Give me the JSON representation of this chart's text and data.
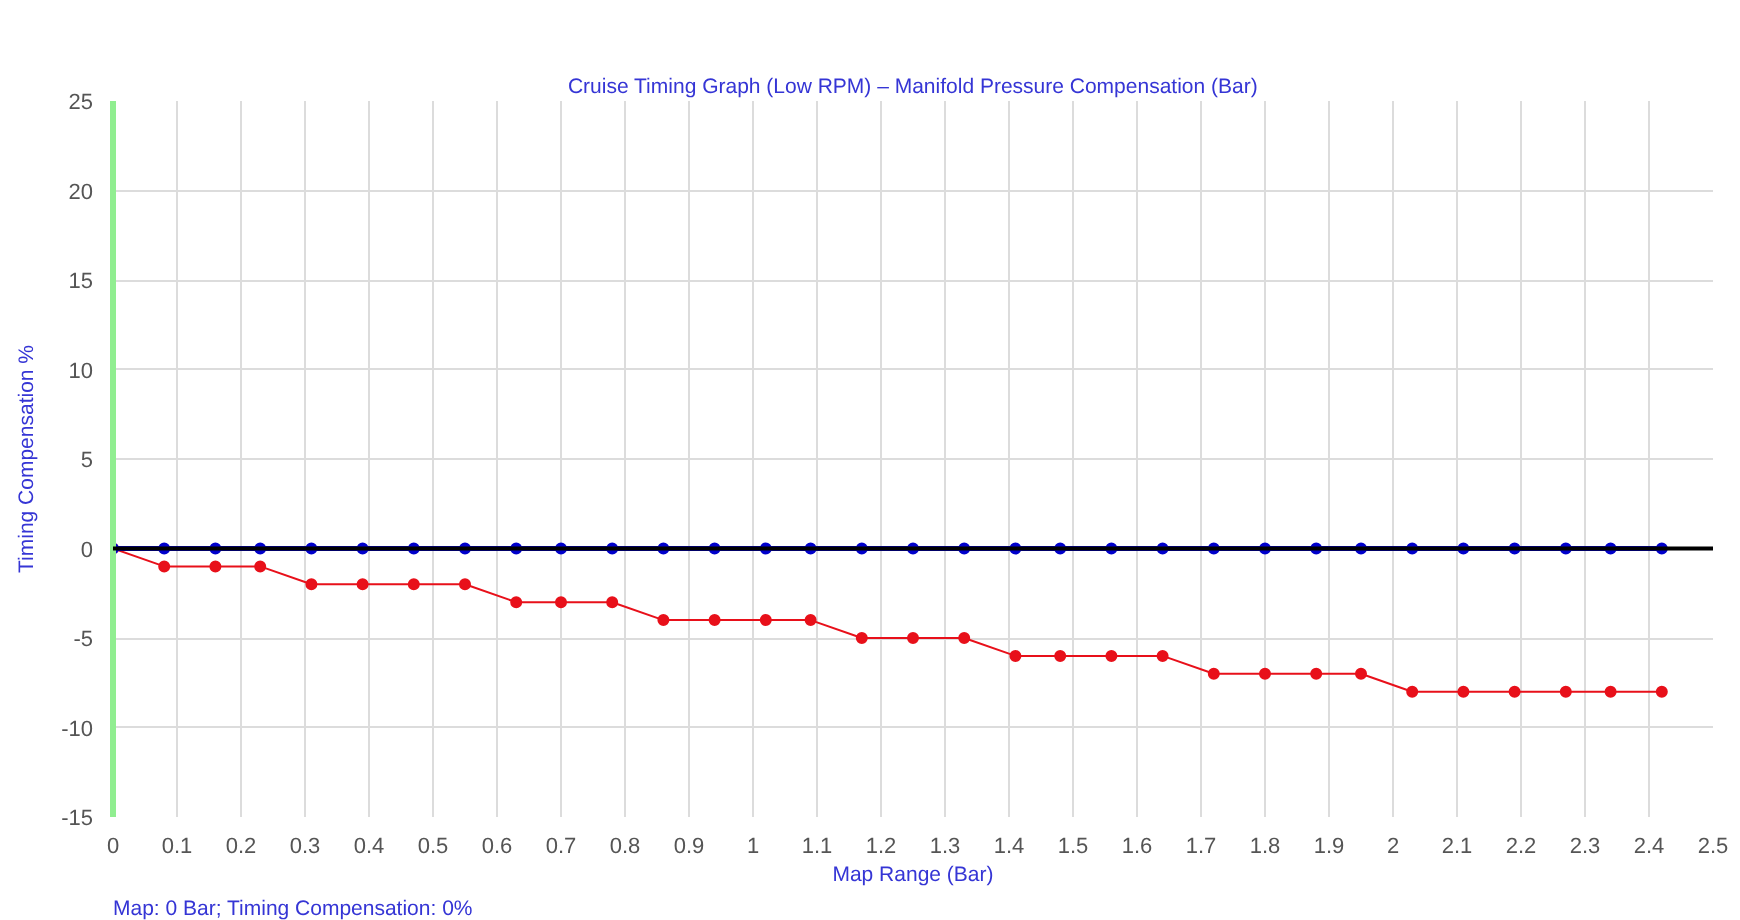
{
  "chart_data": {
    "type": "line",
    "title": "Cruise Timing Graph (Low RPM) – Manifold Pressure Compensation (Bar)",
    "xlabel": "Map Range (Bar)",
    "ylabel": "Timing Compensation %",
    "annotations": [
      "Map: 0 Bar; Timing Compensation: 0%"
    ],
    "x": [
      0,
      0.08,
      0.16,
      0.23,
      0.31,
      0.39,
      0.47,
      0.55,
      0.63,
      0.7,
      0.78,
      0.86,
      0.94,
      1.02,
      1.09,
      1.17,
      1.25,
      1.33,
      1.41,
      1.48,
      1.56,
      1.64,
      1.72,
      1.8,
      1.88,
      1.95,
      2.03,
      2.11,
      2.19,
      2.27,
      2.34,
      2.42
    ],
    "series": [
      {
        "color": "#e8101a",
        "values": [
          0,
          -1,
          -1,
          -1,
          -2,
          -2,
          -2,
          -2,
          -3,
          -3,
          -3,
          -4,
          -4,
          -4,
          -4,
          -5,
          -5,
          -5,
          -6,
          -6,
          -6,
          -6,
          -7,
          -7,
          -7,
          -7,
          -8,
          -8,
          -8,
          -8,
          -8,
          -8
        ]
      },
      {
        "color": "#0000cc",
        "values": [
          0,
          0,
          0,
          0,
          0,
          0,
          0,
          0,
          0,
          0,
          0,
          0,
          0,
          0,
          0,
          0,
          0,
          0,
          0,
          0,
          0,
          0,
          0,
          0,
          0,
          0,
          0,
          0,
          0,
          0,
          0,
          0
        ]
      }
    ],
    "xlim": [
      0,
      2.5
    ],
    "ylim": [
      -15,
      25
    ],
    "xticks": [
      0,
      0.1,
      0.2,
      0.3,
      0.4,
      0.5,
      0.6,
      0.7,
      0.8,
      0.9,
      1,
      1.1,
      1.2,
      1.3,
      1.4,
      1.5,
      1.6,
      1.7,
      1.8,
      1.9,
      2,
      2.1,
      2.2,
      2.3,
      2.4,
      2.5
    ],
    "yticks": [
      -15,
      -10,
      -5,
      0,
      5,
      10,
      15,
      20,
      25
    ],
    "grid": true,
    "marker": "circle",
    "ref_lines": [
      {
        "axis": "y",
        "value": 0,
        "color": "#000000"
      }
    ]
  }
}
